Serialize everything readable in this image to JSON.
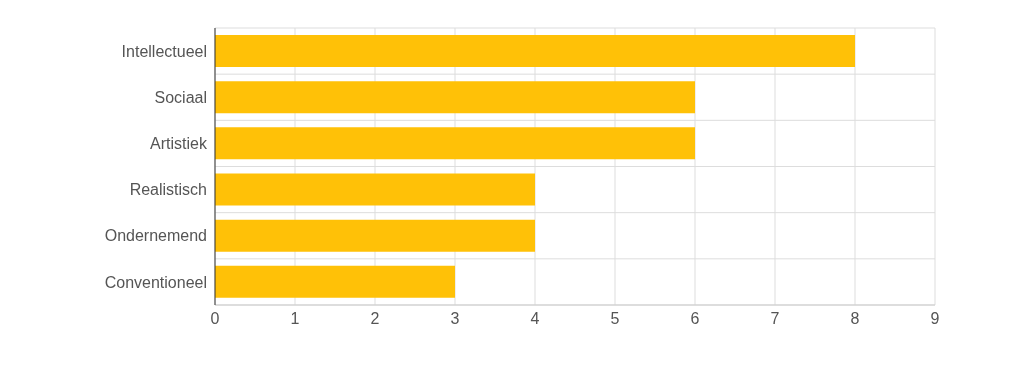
{
  "chart_data": {
    "type": "bar",
    "orientation": "horizontal",
    "categories": [
      "Intellectueel",
      "Sociaal",
      "Artistiek",
      "Realistisch",
      "Ondernemend",
      "Conventioneel"
    ],
    "values": [
      8,
      6,
      6,
      4,
      4,
      3
    ],
    "color": "#ffc107",
    "xlim": [
      0,
      9
    ],
    "xticks": [
      0,
      1,
      2,
      3,
      4,
      5,
      6,
      7,
      8,
      9
    ],
    "grid": true,
    "legend": false
  }
}
